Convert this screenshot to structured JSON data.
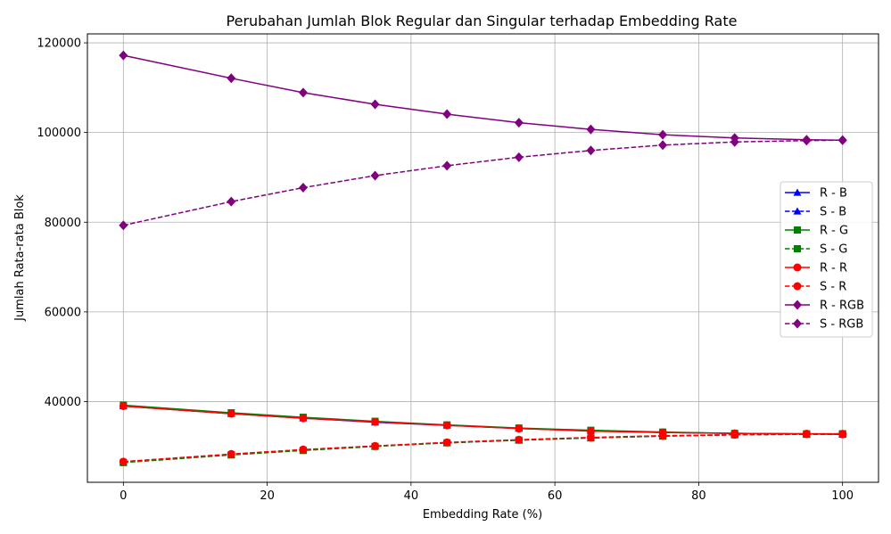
{
  "chart_data": {
    "type": "line",
    "title": "Perubahan Jumlah Blok Regular dan Singular terhadap Embedding Rate",
    "xlabel": "Embedding Rate (%)",
    "ylabel": "Jumlah Rata-rata Blok",
    "x": [
      0,
      15,
      25,
      35,
      45,
      55,
      65,
      75,
      85,
      95,
      100
    ],
    "xlim": [
      -5,
      105
    ],
    "ylim": [
      22000,
      122000
    ],
    "xticks": [
      0,
      20,
      40,
      60,
      80,
      100
    ],
    "xtick_labels": [
      "0",
      "20",
      "40",
      "60",
      "80",
      "100"
    ],
    "yticks": [
      40000,
      60000,
      80000,
      100000,
      120000
    ],
    "ytick_labels": [
      "40000",
      "60000",
      "80000",
      "100000",
      "120000"
    ],
    "grid": true,
    "legend_position": "right",
    "series": [
      {
        "name": "R - B",
        "color": "#0000ff",
        "dash": "solid",
        "marker": "triangle",
        "values": [
          39000,
          37300,
          36300,
          35400,
          34700,
          34000,
          33500,
          33100,
          32900,
          32800,
          32700
        ]
      },
      {
        "name": "S - B",
        "color": "#0000ff",
        "dash": "dashed",
        "marker": "triangle",
        "values": [
          26600,
          28200,
          29200,
          30100,
          30800,
          31400,
          31900,
          32300,
          32600,
          32700,
          32700
        ]
      },
      {
        "name": "R - G",
        "color": "#008000",
        "dash": "solid",
        "marker": "square",
        "values": [
          39200,
          37500,
          36500,
          35600,
          34800,
          34100,
          33600,
          33200,
          32900,
          32800,
          32800
        ]
      },
      {
        "name": "S - G",
        "color": "#008000",
        "dash": "dashed",
        "marker": "square",
        "values": [
          26400,
          28100,
          29100,
          30000,
          30800,
          31400,
          31900,
          32300,
          32600,
          32700,
          32800
        ]
      },
      {
        "name": "R - R",
        "color": "#ff0000",
        "dash": "solid",
        "marker": "circle",
        "values": [
          39000,
          37300,
          36300,
          35500,
          34700,
          34000,
          33400,
          33100,
          32900,
          32800,
          32700
        ]
      },
      {
        "name": "S - R",
        "color": "#ff0000",
        "dash": "dashed",
        "marker": "circle",
        "values": [
          26600,
          28300,
          29300,
          30100,
          30900,
          31500,
          32000,
          32400,
          32600,
          32800,
          32800
        ]
      },
      {
        "name": "R - RGB",
        "color": "#800080",
        "dash": "solid",
        "marker": "diamond",
        "values": [
          117200,
          112100,
          108900,
          106300,
          104100,
          102200,
          100700,
          99500,
          98800,
          98400,
          98300
        ]
      },
      {
        "name": "S - RGB",
        "color": "#800080",
        "dash": "dashed",
        "marker": "diamond",
        "values": [
          79300,
          84600,
          87700,
          90400,
          92600,
          94500,
          96000,
          97200,
          97900,
          98200,
          98300
        ]
      }
    ]
  }
}
